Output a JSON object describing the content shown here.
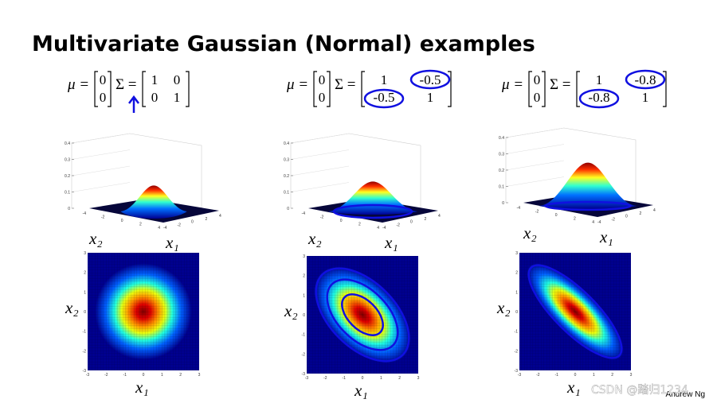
{
  "title": "Multivariate Gaussian (Normal) examples",
  "mu_label": "μ =",
  "sigma_label": "Σ =",
  "panels": [
    {
      "mu": [
        0,
        0
      ],
      "sigma": [
        [
          1,
          0
        ],
        [
          0,
          1
        ]
      ]
    },
    {
      "mu": [
        0,
        0
      ],
      "sigma": [
        [
          1,
          -0.5
        ],
        [
          -0.5,
          1
        ]
      ]
    },
    {
      "mu": [
        0,
        0
      ],
      "sigma": [
        [
          1,
          -0.8
        ],
        [
          -0.8,
          1
        ]
      ]
    }
  ],
  "axis_labels": {
    "x1": "x₁",
    "x2": "x₂"
  },
  "ticks": {
    "surface_z": [
      0,
      0.1,
      0.2,
      0.3,
      0.4
    ],
    "surface_xy": [
      -4,
      -2,
      0,
      2,
      4
    ],
    "heatmap": [
      -3,
      -2,
      -1,
      0,
      1,
      2,
      3
    ]
  },
  "footer": "Andrew Ng",
  "watermark": "CSDN @踏归1234"
}
